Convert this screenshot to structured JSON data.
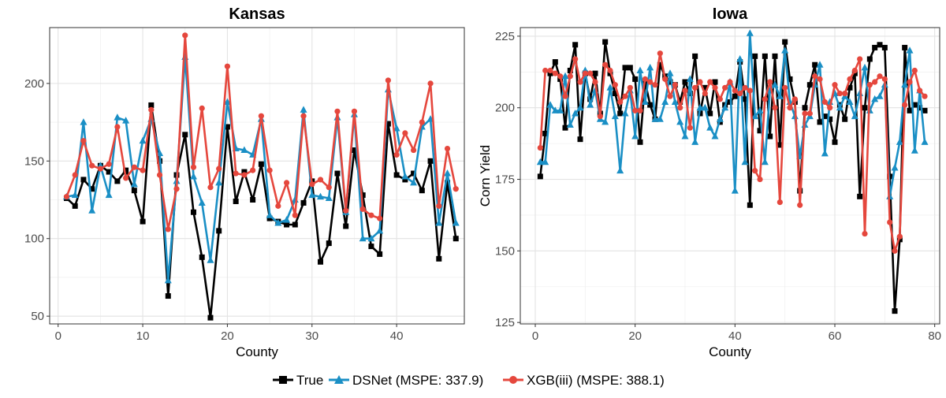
{
  "chart_data": [
    {
      "type": "line",
      "title": "Kansas",
      "xlabel": "County",
      "ylabel": "",
      "xlim": [
        -1,
        48
      ],
      "ylim": [
        45,
        236
      ],
      "xticks": [
        0,
        10,
        20,
        30,
        40
      ],
      "yticks": [
        50,
        100,
        150,
        200
      ],
      "series": [
        {
          "name": "True",
          "color": "#000000",
          "marker": "square",
          "x": [
            1,
            2,
            3,
            4,
            5,
            6,
            7,
            8,
            9,
            10,
            11,
            12,
            13,
            14,
            15,
            16,
            17,
            18,
            19,
            20,
            21,
            22,
            23,
            24,
            25,
            26,
            27,
            28,
            29,
            30,
            31,
            32,
            33,
            34,
            35,
            36,
            37,
            38,
            39,
            40,
            41,
            42,
            43,
            44,
            45,
            46,
            47
          ],
          "y": [
            126,
            121,
            138,
            132,
            147,
            143,
            137,
            144,
            131,
            111,
            186,
            150,
            63,
            141,
            167,
            117,
            88,
            49,
            105,
            172,
            124,
            143,
            125,
            148,
            113,
            111,
            109,
            109,
            123,
            137,
            85,
            97,
            142,
            108,
            157,
            128,
            95,
            90,
            174,
            141,
            138,
            142,
            131,
            150,
            87,
            136,
            100
          ]
        },
        {
          "name": "DSNet (MSPE: 337.9)",
          "color": "#1A8FC5",
          "marker": "triangle",
          "x": [
            1,
            2,
            3,
            4,
            5,
            6,
            7,
            8,
            9,
            10,
            11,
            12,
            13,
            14,
            15,
            16,
            17,
            18,
            19,
            20,
            21,
            22,
            23,
            24,
            25,
            26,
            27,
            28,
            29,
            30,
            31,
            32,
            33,
            34,
            35,
            36,
            37,
            38,
            39,
            40,
            41,
            42,
            43,
            44,
            45,
            46,
            47
          ],
          "y": [
            127,
            128,
            175,
            118,
            147,
            128,
            178,
            176,
            135,
            163,
            177,
            155,
            73,
            137,
            217,
            140,
            123,
            86,
            136,
            188,
            158,
            157,
            154,
            177,
            115,
            110,
            112,
            125,
            183,
            128,
            127,
            126,
            178,
            117,
            180,
            100,
            100,
            105,
            196,
            171,
            140,
            136,
            172,
            177,
            110,
            142,
            110
          ]
        },
        {
          "name": "XGB(iii) (MSPE: 388.1)",
          "color": "#E5473D",
          "marker": "circle",
          "x": [
            1,
            2,
            3,
            4,
            5,
            6,
            7,
            8,
            9,
            10,
            11,
            12,
            13,
            14,
            15,
            16,
            17,
            18,
            19,
            20,
            21,
            22,
            23,
            24,
            25,
            26,
            27,
            28,
            29,
            30,
            31,
            32,
            33,
            34,
            35,
            36,
            37,
            38,
            39,
            40,
            41,
            42,
            43,
            44,
            45,
            46,
            47
          ],
          "y": [
            127,
            141,
            163,
            147,
            145,
            148,
            172,
            139,
            146,
            144,
            183,
            141,
            106,
            132,
            231,
            146,
            184,
            133,
            145,
            211,
            142,
            141,
            144,
            179,
            144,
            121,
            136,
            115,
            179,
            135,
            138,
            133,
            182,
            118,
            182,
            119,
            115,
            113,
            202,
            154,
            168,
            157,
            175,
            200,
            121,
            158,
            132
          ]
        }
      ]
    },
    {
      "type": "line",
      "title": "Iowa",
      "xlabel": "County",
      "ylabel": "Corn Yield",
      "xlim": [
        -3,
        81
      ],
      "ylim": [
        124.5,
        228
      ],
      "xticks": [
        0,
        20,
        40,
        60,
        80
      ],
      "yticks": [
        125,
        150,
        175,
        200,
        225
      ],
      "series": [
        {
          "name": "True",
          "color": "#000000",
          "marker": "square",
          "x": [
            1,
            2,
            3,
            4,
            5,
            6,
            7,
            8,
            9,
            10,
            11,
            12,
            13,
            14,
            15,
            16,
            17,
            18,
            19,
            20,
            21,
            22,
            23,
            24,
            25,
            26,
            27,
            28,
            29,
            30,
            31,
            32,
            33,
            34,
            35,
            36,
            37,
            38,
            39,
            40,
            41,
            42,
            43,
            44,
            45,
            46,
            47,
            48,
            49,
            50,
            51,
            52,
            53,
            54,
            55,
            56,
            57,
            58,
            59,
            60,
            61,
            62,
            63,
            64,
            65,
            66,
            67,
            68,
            69,
            70,
            71,
            72,
            73,
            74,
            75,
            76,
            77,
            78
          ],
          "y": [
            176,
            191,
            212,
            216,
            210,
            193,
            213,
            222,
            189,
            212,
            203,
            212,
            198,
            223,
            212,
            205,
            198,
            214,
            214,
            210,
            188,
            209,
            201,
            196,
            215,
            211,
            209,
            208,
            202,
            209,
            205,
            218,
            198,
            207,
            198,
            209,
            195,
            201,
            202,
            204,
            216,
            203,
            166,
            218,
            192,
            218,
            190,
            218,
            187,
            223,
            210,
            202,
            171,
            200,
            208,
            215,
            195,
            197,
            196,
            188,
            201,
            196,
            207,
            212,
            169,
            200,
            217,
            221,
            222,
            221,
            176,
            129,
            154,
            221,
            199,
            201,
            200,
            199
          ]
        },
        {
          "name": "DSNet (MSPE: 337.9)",
          "color": "#1A8FC5",
          "marker": "triangle",
          "x": [
            1,
            2,
            3,
            4,
            5,
            6,
            7,
            8,
            9,
            10,
            11,
            12,
            13,
            14,
            15,
            16,
            17,
            18,
            19,
            20,
            21,
            22,
            23,
            24,
            25,
            26,
            27,
            28,
            29,
            30,
            31,
            32,
            33,
            34,
            35,
            36,
            37,
            38,
            39,
            40,
            41,
            42,
            43,
            44,
            45,
            46,
            47,
            48,
            49,
            50,
            51,
            52,
            53,
            54,
            55,
            56,
            57,
            58,
            59,
            60,
            61,
            62,
            63,
            64,
            65,
            66,
            67,
            68,
            69,
            70,
            71,
            72,
            73,
            74,
            75,
            76,
            77,
            78
          ],
          "y": [
            181,
            181,
            201,
            199,
            199,
            211,
            194,
            198,
            200,
            213,
            201,
            206,
            196,
            195,
            207,
            197,
            178,
            198,
            206,
            190,
            213,
            202,
            214,
            196,
            196,
            202,
            212,
            202,
            195,
            190,
            210,
            188,
            200,
            200,
            193,
            190,
            196,
            200,
            209,
            171,
            217,
            181,
            226,
            197,
            199,
            181,
            206,
            208,
            204,
            220,
            202,
            197,
            183,
            194,
            197,
            208,
            215,
            184,
            202,
            205,
            200,
            204,
            202,
            197,
            205,
            214,
            199,
            203,
            204,
            208,
            169,
            179,
            188,
            208,
            220,
            185,
            206,
            188
          ]
        },
        {
          "name": "XGB(iii) (MSPE: 388.1)",
          "color": "#E5473D",
          "marker": "circle",
          "x": [
            1,
            2,
            3,
            4,
            5,
            6,
            7,
            8,
            9,
            10,
            11,
            12,
            13,
            14,
            15,
            16,
            17,
            18,
            19,
            20,
            21,
            22,
            23,
            24,
            25,
            26,
            27,
            28,
            29,
            30,
            31,
            32,
            33,
            34,
            35,
            36,
            37,
            38,
            39,
            40,
            41,
            42,
            43,
            44,
            45,
            46,
            47,
            48,
            49,
            50,
            51,
            52,
            53,
            54,
            55,
            56,
            57,
            58,
            59,
            60,
            61,
            62,
            63,
            64,
            65,
            66,
            67,
            68,
            69,
            70,
            71,
            72,
            73,
            74,
            75,
            76,
            77,
            78
          ],
          "y": [
            186,
            213,
            213,
            212,
            211,
            204,
            211,
            217,
            209,
            212,
            212,
            209,
            197,
            215,
            213,
            208,
            202,
            204,
            207,
            199,
            199,
            210,
            209,
            208,
            219,
            210,
            204,
            208,
            200,
            206,
            193,
            207,
            209,
            205,
            209,
            207,
            203,
            207,
            209,
            206,
            205,
            207,
            206,
            178,
            175,
            203,
            209,
            200,
            167,
            207,
            200,
            203,
            166,
            198,
            198,
            211,
            210,
            202,
            200,
            208,
            205,
            205,
            210,
            213,
            217,
            156,
            208,
            209,
            211,
            210,
            160,
            150,
            155,
            201,
            209,
            213,
            206,
            204
          ]
        }
      ]
    }
  ],
  "legend": {
    "items": [
      {
        "label": "True",
        "color": "#000000",
        "marker": "square"
      },
      {
        "label": "DSNet (MSPE: 337.9)",
        "color": "#1A8FC5",
        "marker": "triangle"
      },
      {
        "label": "XGB(iii) (MSPE: 388.1)",
        "color": "#E5473D",
        "marker": "circle"
      }
    ]
  }
}
